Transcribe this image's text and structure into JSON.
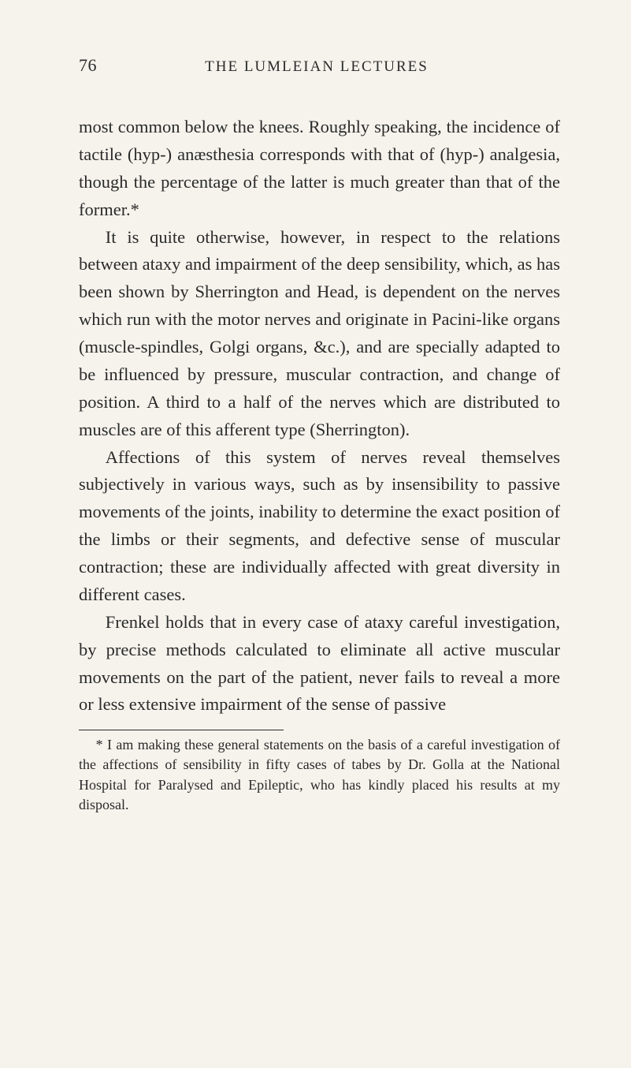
{
  "page": {
    "number": "76",
    "running_title": "THE LUMLEIAN LECTURES",
    "background_color": "#f5f3ec",
    "text_color": "#2a2a2a",
    "body_fontsize": 22.5,
    "footnote_fontsize": 18,
    "header_fontsize": 19
  },
  "paragraphs": {
    "p1": "most common below the knees. Roughly speaking, the incidence of tactile (hyp-) anæsthesia corre­sponds with that of (hyp-) analgesia, though the percentage of the latter is much greater than that of the former.*",
    "p2": "It is quite otherwise, however, in respect to the relations between ataxy and impairment of the deep sensibility, which, as has been shown by Sherrington and Head, is dependent on the nerves which run with the motor nerves and originate in Pacini-like organs (muscle-spindles, Golgi organs, &c.), and are specially adapted to be influenced by pres­sure, muscular contraction, and change of position. A third to a half of the nerves which are distributed to muscles are of this afferent type (Sherrington).",
    "p3": "Affections of this system of nerves reveal them­selves subjectively in various ways, such as by insensibility to passive movements of the joints, inability to determine the exact position of the limbs or their segments, and defective sense of muscular contraction; these are individually affected with great diversity in different cases.",
    "p4": "Frenkel holds that in every case of ataxy careful investigation, by precise methods calculated to eliminate all active muscular movements on the part of the patient, never fails to reveal a more or less extensive impairment of the sense of passive"
  },
  "footnote": {
    "text": "* I am making these general statements on the basis of a careful investigation of the affections of sensibility in fifty cases of tabes by Dr. Golla at the National Hospital for Paralysed and Epileptic, who has kindly placed his results at my disposal."
  }
}
